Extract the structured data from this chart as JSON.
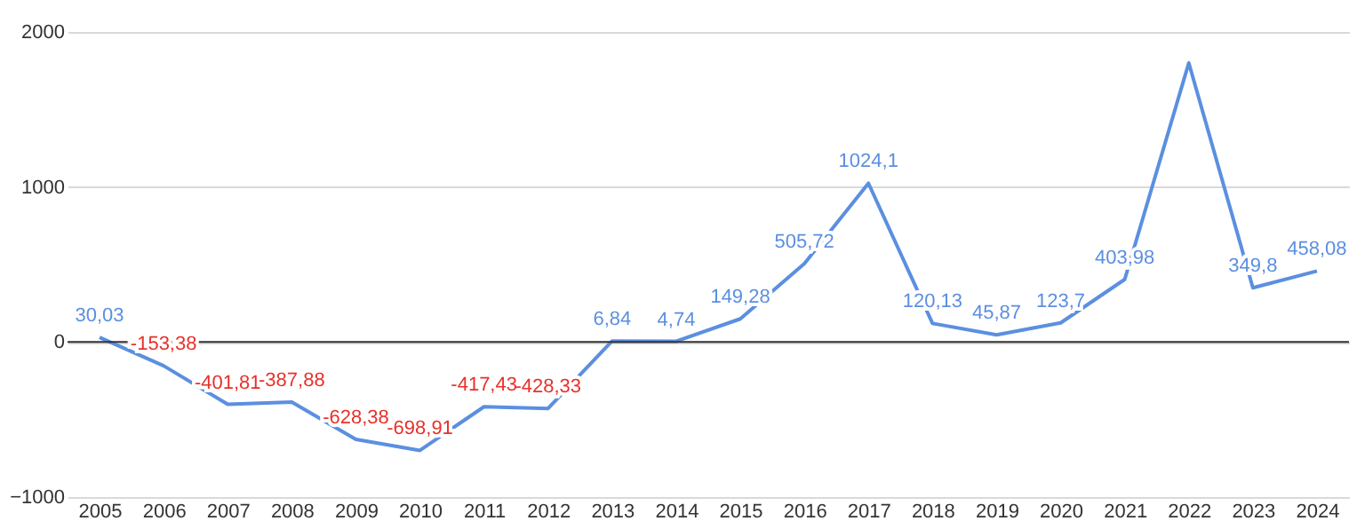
{
  "chart_data": {
    "type": "line",
    "categories": [
      "2005",
      "2006",
      "2007",
      "2008",
      "2009",
      "2010",
      "2011",
      "2012",
      "2013",
      "2014",
      "2015",
      "2016",
      "2017",
      "2018",
      "2019",
      "2020",
      "2021",
      "2022",
      "2023",
      "2024"
    ],
    "series": [
      {
        "color": "#5b8fe0",
        "values": [
          30.03,
          -153.38,
          -401.81,
          -387.88,
          -628.38,
          -698.91,
          -417.43,
          -428.33,
          6.84,
          4.74,
          149.28,
          505.72,
          1024.1,
          120.13,
          45.87,
          123.7,
          403.98,
          1800,
          349.8,
          458.08
        ],
        "value_labels": [
          "30,03",
          "-153,38",
          "-401,81",
          "-387,88",
          "-628,38",
          "-698,91",
          "-417,43",
          "-428,33",
          "6,84",
          "4,74",
          "149,28",
          "505,72",
          "1024,1",
          "120,13",
          "45,87",
          "123,7",
          "403,98",
          null,
          "349,8",
          "458,08"
        ]
      }
    ],
    "ref_lines": [
      {
        "axis": "y",
        "value": 0,
        "color": "#333333"
      }
    ],
    "ylim": [
      -1000,
      2000
    ],
    "yticks": [
      -1000,
      0,
      1000,
      2000
    ],
    "grid": "y",
    "legend": false,
    "marker": "none",
    "line_style": "solid"
  }
}
